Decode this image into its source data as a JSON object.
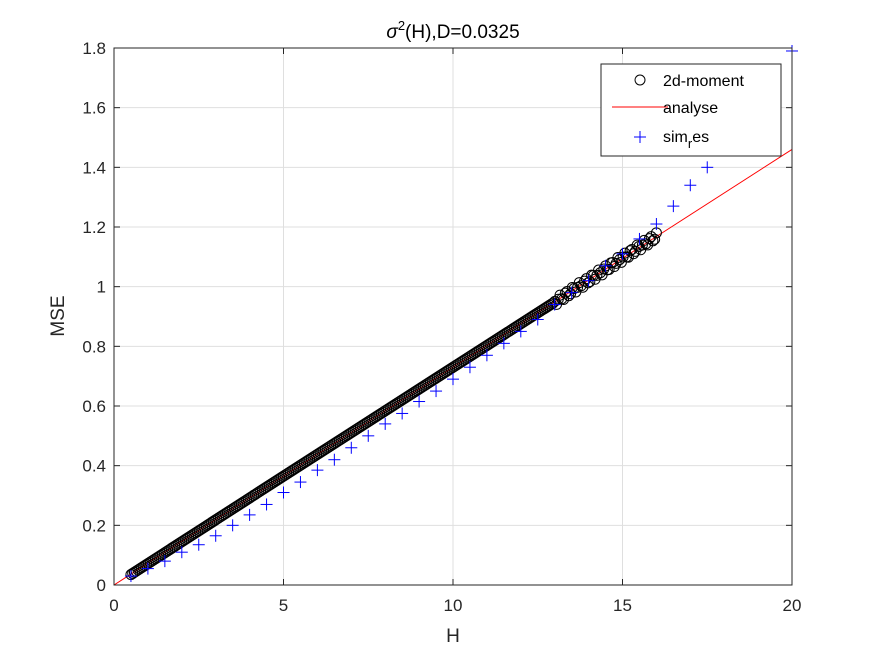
{
  "chart_data": {
    "type": "scatter",
    "title": {
      "symbol": "σ",
      "superscript": "2",
      "rest": "(H),D=0.0325"
    },
    "xlabel": "H",
    "ylabel": "MSE",
    "xlim": [
      0,
      20
    ],
    "ylim": [
      0,
      1.8
    ],
    "xticks": [
      0,
      5,
      10,
      15,
      20
    ],
    "xtick_labels": [
      "0",
      "5",
      "10",
      "15",
      "20"
    ],
    "yticks": [
      0,
      0.2,
      0.4,
      0.6,
      0.8,
      1.0,
      1.2,
      1.4,
      1.6,
      1.8
    ],
    "ytick_labels": [
      "0",
      "0.2",
      "0.4",
      "0.6",
      "0.8",
      "1",
      "1.2",
      "1.4",
      "1.6",
      "1.8"
    ],
    "grid": true,
    "legend_position": "top-right",
    "series": [
      {
        "name": "2d-moment",
        "marker": "circle",
        "color": "#000000",
        "x_range": [
          0.5,
          16.0
        ],
        "y_range": [
          0.035,
          1.17
        ],
        "description_points": [
          {
            "x": 0.5,
            "y": 0.035
          },
          {
            "x": 5.0,
            "y": 0.365
          },
          {
            "x": 10.0,
            "y": 0.73
          },
          {
            "x": 13.5,
            "y": 0.985
          },
          {
            "x": 16.0,
            "y": 1.17
          }
        ]
      },
      {
        "name": "analyse",
        "marker": "line",
        "color": "#ff0000",
        "x": [
          0,
          20
        ],
        "y": [
          0,
          1.46
        ]
      },
      {
        "name_main": "sim",
        "name_sub": "r",
        "name_tail": "es",
        "marker": "plus",
        "color": "#0000ff",
        "x": [
          0.5,
          1.0,
          1.5,
          2.0,
          2.5,
          3.0,
          3.5,
          4.0,
          4.5,
          5.0,
          5.5,
          6.0,
          6.5,
          7.0,
          7.5,
          8.0,
          8.5,
          9.0,
          9.5,
          10.0,
          10.5,
          11.0,
          11.5,
          12.0,
          12.5,
          13.0,
          13.5,
          14.0,
          14.5,
          15.0,
          15.5,
          16.0,
          16.5,
          17.0,
          17.5,
          19.5,
          20.0
        ],
        "y": [
          0.03,
          0.055,
          0.08,
          0.11,
          0.135,
          0.165,
          0.2,
          0.235,
          0.27,
          0.31,
          0.345,
          0.385,
          0.42,
          0.46,
          0.5,
          0.54,
          0.575,
          0.615,
          0.65,
          0.69,
          0.73,
          0.77,
          0.81,
          0.85,
          0.89,
          0.94,
          0.98,
          1.02,
          1.07,
          1.11,
          1.16,
          1.21,
          1.27,
          1.34,
          1.4,
          1.7,
          1.79
        ]
      }
    ]
  }
}
